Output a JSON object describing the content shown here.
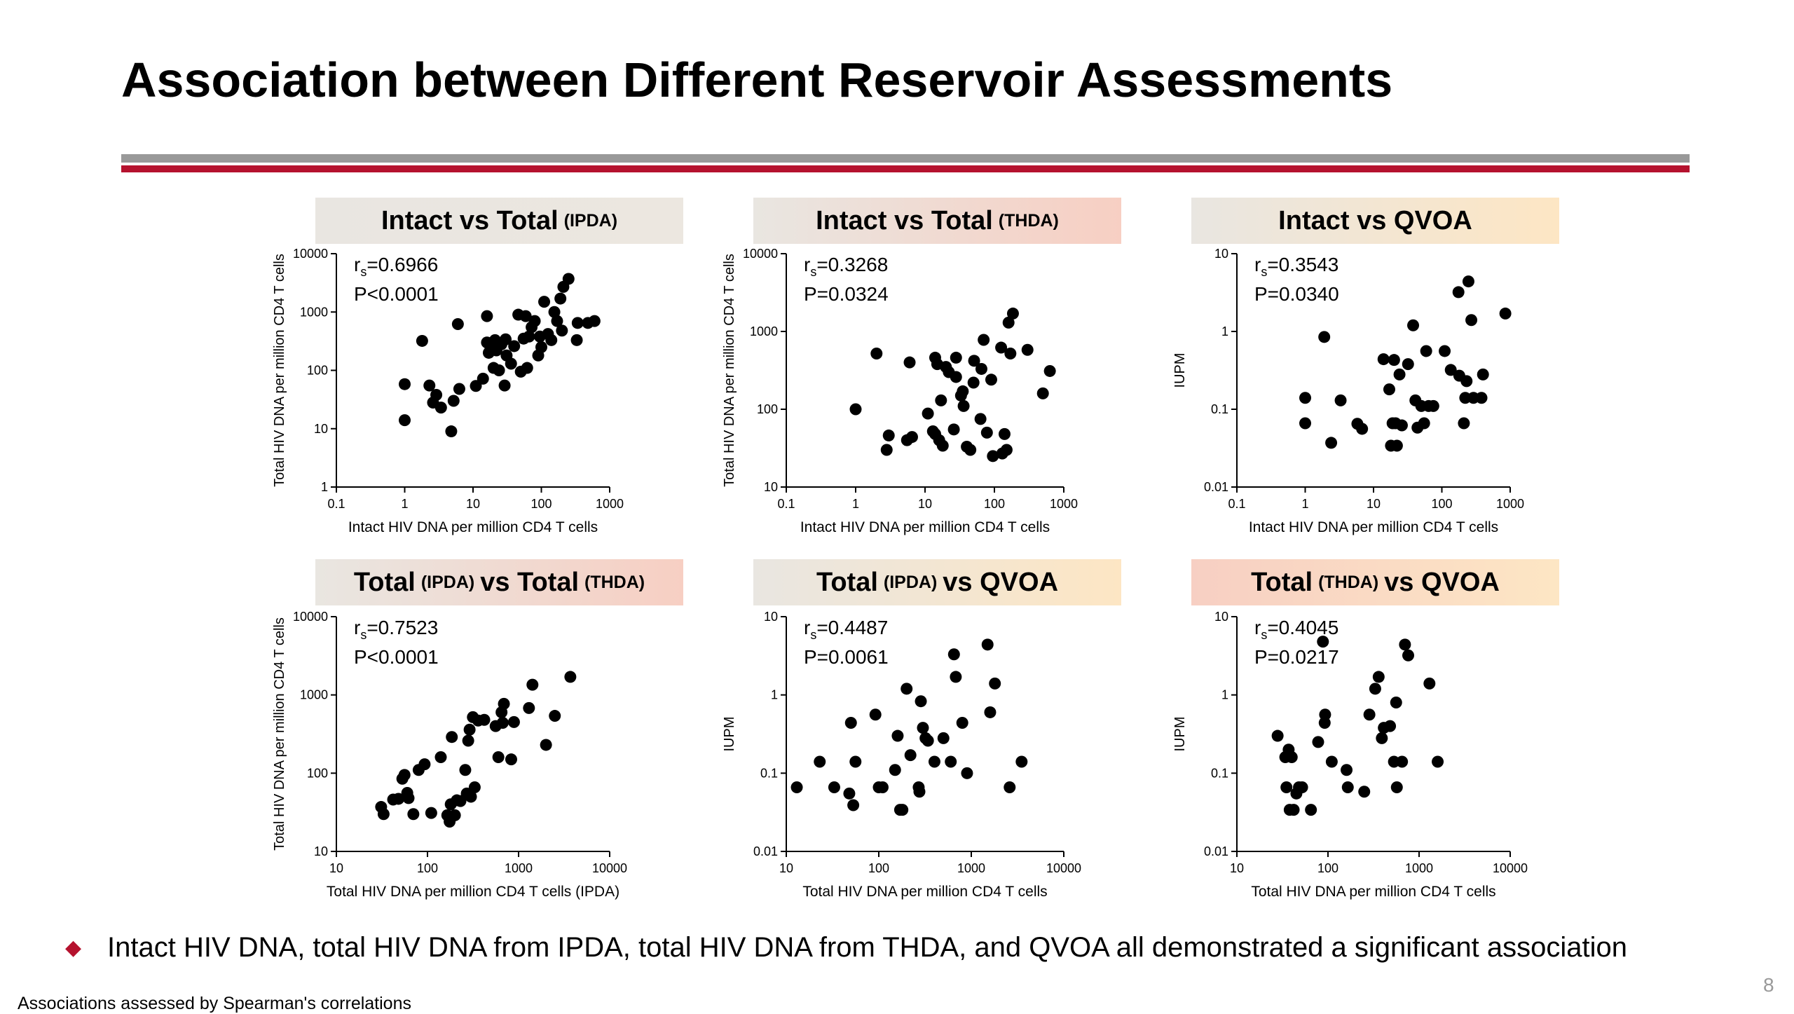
{
  "slide": {
    "title": "Association between Different Reservoir Assessments",
    "bullet": "Intact HIV DNA, total HIV DNA from IPDA, total HIV DNA from THDA, and QVOA all demonstrated a significant association",
    "footnote": "Associations assessed by Spearman's correlations",
    "page_number": "8"
  },
  "colors": {
    "accent_red": "#b5122e",
    "rule_gray": "#999999",
    "marker": "#000000"
  },
  "chart_data": [
    {
      "type": "scatter",
      "title_parts": [
        {
          "text": "Intact vs Total",
          "small": false
        },
        {
          "text": "(IPDA)",
          "small": true
        }
      ],
      "header_gradient": [
        "#e9e6e1",
        "#ece7e0"
      ],
      "xlabel": "Intact HIV DNA per million CD4 T cells",
      "ylabel": "Total HIV DNA per million CD4 T cells",
      "xscale": "log",
      "yscale": "log",
      "xlim": [
        0.1,
        1000
      ],
      "ylim": [
        1,
        10000
      ],
      "xticks": [
        0.1,
        1,
        10,
        100,
        1000
      ],
      "xtick_labels": [
        "0.1",
        "1",
        "10",
        "100",
        "1000"
      ],
      "yticks": [
        1,
        10,
        100,
        1000,
        10000
      ],
      "ytick_labels": [
        "1",
        "10",
        "100",
        "1000",
        "10000"
      ],
      "annotation": {
        "r_prefix": "r",
        "r_sub": "s",
        "r_value": "=0.6966",
        "p_value": "P<0.0001"
      },
      "points": [
        [
          1,
          14
        ],
        [
          1,
          58
        ],
        [
          1.8,
          320
        ],
        [
          2.3,
          55
        ],
        [
          2.6,
          28
        ],
        [
          2.9,
          38
        ],
        [
          3.4,
          23
        ],
        [
          4.8,
          9
        ],
        [
          5.2,
          30
        ],
        [
          6,
          620
        ],
        [
          6.3,
          48
        ],
        [
          11,
          54
        ],
        [
          14,
          72
        ],
        [
          16,
          300
        ],
        [
          16,
          850
        ],
        [
          17,
          200
        ],
        [
          18,
          250
        ],
        [
          20,
          110
        ],
        [
          21,
          330
        ],
        [
          22,
          220
        ],
        [
          24,
          100
        ],
        [
          26,
          280
        ],
        [
          29,
          55
        ],
        [
          30,
          340
        ],
        [
          31,
          180
        ],
        [
          36,
          130
        ],
        [
          40,
          260
        ],
        [
          46,
          900
        ],
        [
          50,
          95
        ],
        [
          55,
          350
        ],
        [
          59,
          850
        ],
        [
          62,
          110
        ],
        [
          66,
          380
        ],
        [
          72,
          550
        ],
        [
          80,
          700
        ],
        [
          90,
          180
        ],
        [
          95,
          380
        ],
        [
          100,
          250
        ],
        [
          110,
          1500
        ],
        [
          125,
          420
        ],
        [
          140,
          330
        ],
        [
          155,
          1000
        ],
        [
          170,
          700
        ],
        [
          190,
          1700
        ],
        [
          200,
          480
        ],
        [
          210,
          2700
        ],
        [
          250,
          3700
        ],
        [
          330,
          330
        ],
        [
          340,
          650
        ],
        [
          480,
          650
        ],
        [
          600,
          700
        ]
      ]
    },
    {
      "type": "scatter",
      "title_parts": [
        {
          "text": "Intact vs Total",
          "small": false
        },
        {
          "text": "(THDA)",
          "small": true
        }
      ],
      "header_gradient": [
        "#e9e6e1",
        "#f7cfc3"
      ],
      "xlabel": "Intact HIV DNA per million CD4 T cells",
      "ylabel": "Total HIV DNA per million CD4 T cells",
      "xscale": "log",
      "yscale": "log",
      "xlim": [
        0.1,
        1000
      ],
      "ylim": [
        10,
        10000
      ],
      "xticks": [
        0.1,
        1,
        10,
        100,
        1000
      ],
      "xtick_labels": [
        "0.1",
        "1",
        "10",
        "100",
        "1000"
      ],
      "yticks": [
        10,
        100,
        1000,
        10000
      ],
      "ytick_labels": [
        "10",
        "100",
        "1000",
        "10000"
      ],
      "annotation": {
        "r_prefix": "r",
        "r_sub": "s",
        "r_value": "=0.3268",
        "p_value": "P=0.0324"
      },
      "points": [
        [
          1,
          100
        ],
        [
          2,
          520
        ],
        [
          2.8,
          30
        ],
        [
          3,
          46
        ],
        [
          5.5,
          40
        ],
        [
          6,
          400
        ],
        [
          6.5,
          44
        ],
        [
          11,
          88
        ],
        [
          13,
          52
        ],
        [
          14,
          48
        ],
        [
          14,
          460
        ],
        [
          15,
          380
        ],
        [
          16,
          40
        ],
        [
          17,
          130
        ],
        [
          18,
          34
        ],
        [
          20,
          350
        ],
        [
          22,
          300
        ],
        [
          26,
          55
        ],
        [
          28,
          260
        ],
        [
          28,
          460
        ],
        [
          33,
          150
        ],
        [
          35,
          170
        ],
        [
          36,
          110
        ],
        [
          40,
          33
        ],
        [
          45,
          30
        ],
        [
          50,
          220
        ],
        [
          51,
          420
        ],
        [
          63,
          75
        ],
        [
          65,
          330
        ],
        [
          70,
          780
        ],
        [
          78,
          50
        ],
        [
          90,
          240
        ],
        [
          95,
          25
        ],
        [
          125,
          620
        ],
        [
          130,
          27
        ],
        [
          140,
          48
        ],
        [
          150,
          30
        ],
        [
          160,
          1300
        ],
        [
          170,
          520
        ],
        [
          185,
          1700
        ],
        [
          300,
          580
        ],
        [
          500,
          160
        ],
        [
          630,
          310
        ]
      ]
    },
    {
      "type": "scatter",
      "title_parts": [
        {
          "text": "Intact vs QVOA",
          "small": false
        }
      ],
      "header_gradient": [
        "#e9e6e1",
        "#fde6c4"
      ],
      "xlabel": "Intact HIV DNA per million CD4 T cells",
      "ylabel": "IUPM",
      "xscale": "log",
      "yscale": "log",
      "xlim": [
        0.1,
        1000
      ],
      "ylim": [
        0.01,
        10
      ],
      "xticks": [
        0.1,
        1,
        10,
        100,
        1000
      ],
      "xtick_labels": [
        "0.1",
        "1",
        "10",
        "100",
        "1000"
      ],
      "yticks": [
        0.01,
        0.1,
        1,
        10
      ],
      "ytick_labels": [
        "0.01",
        "0.1",
        "1",
        "10"
      ],
      "annotation": {
        "r_prefix": "r",
        "r_sub": "s",
        "r_value": "=0.3543",
        "p_value": "P=0.0340"
      },
      "points": [
        [
          1,
          0.14
        ],
        [
          1,
          0.066
        ],
        [
          1.9,
          0.85
        ],
        [
          2.4,
          0.037
        ],
        [
          3.3,
          0.13
        ],
        [
          5.8,
          0.065
        ],
        [
          6.8,
          0.056
        ],
        [
          14,
          0.44
        ],
        [
          17,
          0.18
        ],
        [
          18,
          0.034
        ],
        [
          19,
          0.066
        ],
        [
          20,
          0.43
        ],
        [
          21,
          0.066
        ],
        [
          22,
          0.034
        ],
        [
          24,
          0.28
        ],
        [
          26,
          0.062
        ],
        [
          32,
          0.38
        ],
        [
          38,
          1.2
        ],
        [
          41,
          0.13
        ],
        [
          44,
          0.058
        ],
        [
          50,
          0.11
        ],
        [
          55,
          0.066
        ],
        [
          59,
          0.56
        ],
        [
          64,
          0.11
        ],
        [
          75,
          0.11
        ],
        [
          110,
          0.56
        ],
        [
          135,
          0.32
        ],
        [
          175,
          3.2
        ],
        [
          180,
          0.27
        ],
        [
          210,
          0.066
        ],
        [
          220,
          0.14
        ],
        [
          230,
          0.23
        ],
        [
          245,
          4.4
        ],
        [
          270,
          1.4
        ],
        [
          290,
          0.14
        ],
        [
          380,
          0.14
        ],
        [
          400,
          0.28
        ],
        [
          850,
          1.7
        ]
      ]
    },
    {
      "type": "scatter",
      "title_parts": [
        {
          "text": "Total",
          "small": false
        },
        {
          "text": "(IPDA)",
          "small": true
        },
        {
          "text": "vs Total",
          "small": false
        },
        {
          "text": "(THDA)",
          "small": true
        }
      ],
      "header_gradient": [
        "#e9e6e1",
        "#f7cfc3"
      ],
      "xlabel": "Total HIV DNA per million CD4 T cells (IPDA)",
      "ylabel": "Total HIV DNA per million CD4 T cells",
      "xscale": "log",
      "yscale": "log",
      "xlim": [
        10,
        10000
      ],
      "ylim": [
        10,
        10000
      ],
      "xticks": [
        10,
        100,
        1000,
        10000
      ],
      "xtick_labels": [
        "10",
        "100",
        "1000",
        "10000"
      ],
      "yticks": [
        10,
        100,
        1000,
        10000
      ],
      "ytick_labels": [
        "10",
        "100",
        "1000",
        "10000"
      ],
      "annotation": {
        "r_prefix": "r",
        "r_sub": "s",
        "r_value": "=0.7523",
        "p_value": "P<0.0001"
      },
      "points": [
        [
          31,
          37
        ],
        [
          33,
          30
        ],
        [
          42,
          46
        ],
        [
          48,
          47
        ],
        [
          53,
          85
        ],
        [
          56,
          95
        ],
        [
          60,
          56
        ],
        [
          62,
          48
        ],
        [
          70,
          30
        ],
        [
          80,
          110
        ],
        [
          93,
          130
        ],
        [
          110,
          31
        ],
        [
          140,
          160
        ],
        [
          165,
          29
        ],
        [
          175,
          24
        ],
        [
          180,
          40
        ],
        [
          185,
          290
        ],
        [
          200,
          29
        ],
        [
          210,
          45
        ],
        [
          230,
          44
        ],
        [
          260,
          110
        ],
        [
          270,
          55
        ],
        [
          280,
          260
        ],
        [
          290,
          360
        ],
        [
          300,
          50
        ],
        [
          315,
          520
        ],
        [
          330,
          66
        ],
        [
          360,
          470
        ],
        [
          420,
          480
        ],
        [
          560,
          400
        ],
        [
          600,
          160
        ],
        [
          650,
          600
        ],
        [
          670,
          440
        ],
        [
          690,
          770
        ],
        [
          830,
          150
        ],
        [
          890,
          450
        ],
        [
          1300,
          680
        ],
        [
          1420,
          1350
        ],
        [
          2000,
          230
        ],
        [
          2500,
          540
        ],
        [
          3700,
          1700
        ]
      ]
    },
    {
      "type": "scatter",
      "title_parts": [
        {
          "text": "Total",
          "small": false
        },
        {
          "text": "(IPDA)",
          "small": true
        },
        {
          "text": "vs QVOA",
          "small": false
        }
      ],
      "header_gradient": [
        "#e9e6e1",
        "#fde6c4"
      ],
      "xlabel": "Total HIV DNA per million CD4 T cells",
      "ylabel": "IUPM",
      "xscale": "log",
      "yscale": "log",
      "xlim": [
        10,
        10000
      ],
      "ylim": [
        0.01,
        10
      ],
      "xticks": [
        10,
        100,
        1000,
        10000
      ],
      "xtick_labels": [
        "10",
        "100",
        "1000",
        "10000"
      ],
      "yticks": [
        0.01,
        0.1,
        1,
        10
      ],
      "ytick_labels": [
        "0.01",
        "0.1",
        "1",
        "10"
      ],
      "annotation": {
        "r_prefix": "r",
        "r_sub": "s",
        "r_value": "=0.4487",
        "p_value": "P=0.0061"
      },
      "points": [
        [
          13,
          0.066
        ],
        [
          23,
          0.14
        ],
        [
          33,
          0.066
        ],
        [
          48,
          0.055
        ],
        [
          50,
          0.44
        ],
        [
          53,
          0.039
        ],
        [
          56,
          0.14
        ],
        [
          92,
          0.56
        ],
        [
          100,
          0.066
        ],
        [
          110,
          0.066
        ],
        [
          150,
          0.11
        ],
        [
          160,
          0.3
        ],
        [
          170,
          0.034
        ],
        [
          180,
          0.034
        ],
        [
          200,
          1.2
        ],
        [
          220,
          0.17
        ],
        [
          270,
          0.066
        ],
        [
          275,
          0.058
        ],
        [
          285,
          0.83
        ],
        [
          300,
          0.38
        ],
        [
          320,
          0.28
        ],
        [
          340,
          0.26
        ],
        [
          400,
          0.14
        ],
        [
          500,
          0.28
        ],
        [
          600,
          0.14
        ],
        [
          650,
          3.3
        ],
        [
          680,
          1.7
        ],
        [
          800,
          0.44
        ],
        [
          900,
          0.1
        ],
        [
          1500,
          4.4
        ],
        [
          1600,
          0.6
        ],
        [
          1800,
          1.4
        ],
        [
          2600,
          0.066
        ],
        [
          3500,
          0.14
        ]
      ]
    },
    {
      "type": "scatter",
      "title_parts": [
        {
          "text": "Total",
          "small": false
        },
        {
          "text": "(THDA)",
          "small": true
        },
        {
          "text": "vs QVOA",
          "small": false
        }
      ],
      "header_gradient": [
        "#f7cfc3",
        "#fde6c4"
      ],
      "xlabel": "Total HIV DNA per million CD4 T cells",
      "ylabel": "IUPM",
      "xscale": "log",
      "yscale": "log",
      "xlim": [
        10,
        10000
      ],
      "ylim": [
        0.01,
        10
      ],
      "xticks": [
        10,
        100,
        1000,
        10000
      ],
      "xtick_labels": [
        "10",
        "100",
        "1000",
        "10000"
      ],
      "yticks": [
        0.01,
        0.1,
        1,
        10
      ],
      "ytick_labels": [
        "0.01",
        "0.1",
        "1",
        "10"
      ],
      "annotation": {
        "r_prefix": "r",
        "r_sub": "s",
        "r_value": "=0.4045",
        "p_value": "P=0.0217"
      },
      "points": [
        [
          28,
          0.3
        ],
        [
          34,
          0.16
        ],
        [
          35,
          0.066
        ],
        [
          37,
          0.2
        ],
        [
          38,
          0.034
        ],
        [
          40,
          0.16
        ],
        [
          42,
          0.034
        ],
        [
          45,
          0.055
        ],
        [
          48,
          0.066
        ],
        [
          52,
          0.066
        ],
        [
          65,
          0.034
        ],
        [
          78,
          0.25
        ],
        [
          88,
          4.8
        ],
        [
          92,
          0.44
        ],
        [
          93,
          0.56
        ],
        [
          110,
          0.14
        ],
        [
          160,
          0.11
        ],
        [
          165,
          0.066
        ],
        [
          250,
          0.058
        ],
        [
          285,
          0.56
        ],
        [
          330,
          1.2
        ],
        [
          360,
          1.7
        ],
        [
          390,
          0.28
        ],
        [
          410,
          0.38
        ],
        [
          480,
          0.4
        ],
        [
          530,
          0.14
        ],
        [
          560,
          0.8
        ],
        [
          570,
          0.066
        ],
        [
          650,
          0.14
        ],
        [
          700,
          4.4
        ],
        [
          760,
          3.2
        ],
        [
          1300,
          1.4
        ],
        [
          1600,
          0.14
        ]
      ]
    }
  ]
}
